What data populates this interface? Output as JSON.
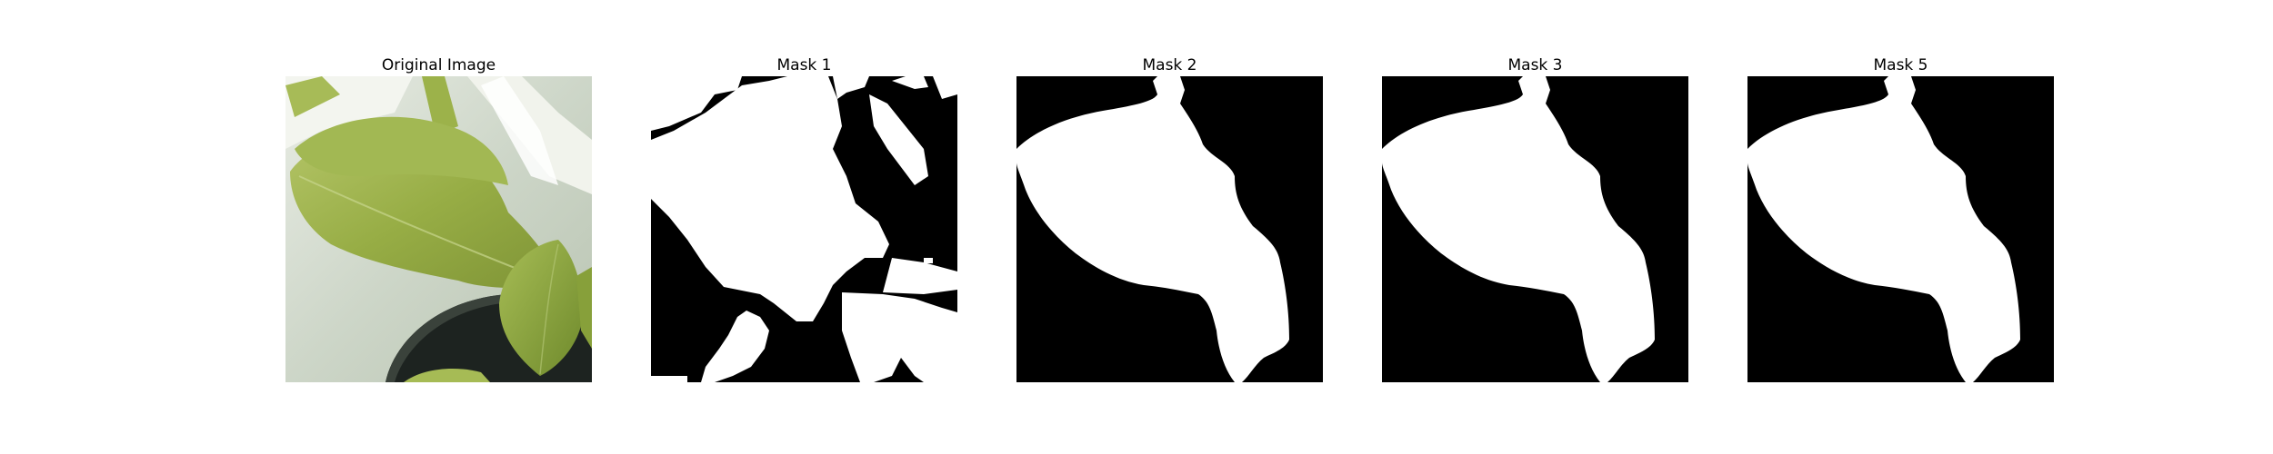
{
  "figure": {
    "panels": [
      {
        "title": "Original Image",
        "kind": "photo"
      },
      {
        "title": "Mask 1",
        "kind": "mask"
      },
      {
        "title": "Mask 2",
        "kind": "mask"
      },
      {
        "title": "Mask 3",
        "kind": "mask"
      },
      {
        "title": "Mask 5",
        "kind": "mask"
      }
    ],
    "colors": {
      "background": "#ffffff",
      "mask_foreground": "#ffffff",
      "mask_background": "#000000",
      "leaf_light": "#a9be5a",
      "leaf_mid": "#8ea43f",
      "leaf_dark": "#6f8430",
      "backdrop": "#d6ddd1",
      "pot": "#1d2320"
    }
  }
}
